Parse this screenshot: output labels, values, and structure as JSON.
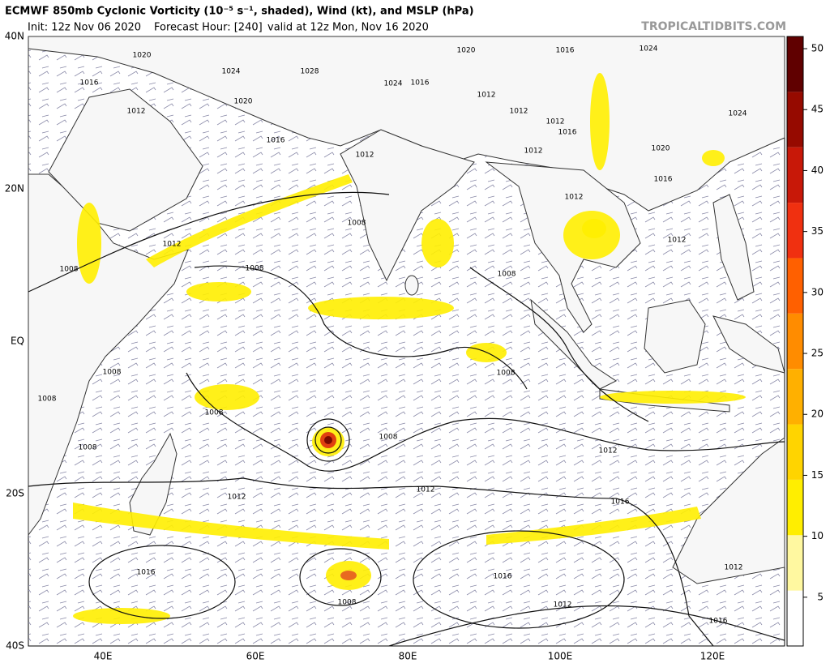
{
  "header": {
    "title": "ECMWF 850mb Cyclonic Vorticity (10⁻⁵ s⁻¹, shaded), Wind (kt), and MSLP (hPa)",
    "init": "Init: 12z Nov 06 2020",
    "forecast_hour": "Forecast Hour: [240]",
    "valid": "valid at 12z Mon, Nov 16 2020",
    "site": "TROPICALTIDBITS.COM"
  },
  "map": {
    "lat_labels": [
      "40N",
      "20N",
      "EQ",
      "20S",
      "40S"
    ],
    "lon_labels": [
      "40E",
      "60E",
      "80E",
      "100E",
      "120E"
    ],
    "isobar_labels": [
      "1020",
      "1016",
      "1012",
      "1024",
      "1028",
      "1020",
      "1016",
      "1012",
      "1020",
      "1016",
      "1024",
      "1024",
      "1016",
      "1012",
      "1012",
      "1012",
      "1016",
      "1012",
      "1020",
      "1024",
      "1016",
      "1012",
      "1012",
      "1008",
      "1012",
      "1008",
      "1008",
      "1008",
      "1008",
      "1008",
      "1008",
      "1008",
      "1008",
      "1012",
      "1008",
      "1012",
      "1012",
      "1016",
      "1016",
      "1016",
      "1008",
      "1012",
      "1016",
      "1012"
    ]
  },
  "colorbar": {
    "lim": [
      1,
      51
    ],
    "ticks": [
      5,
      10,
      15,
      20,
      25,
      30,
      35,
      40,
      45,
      50
    ]
  }
}
